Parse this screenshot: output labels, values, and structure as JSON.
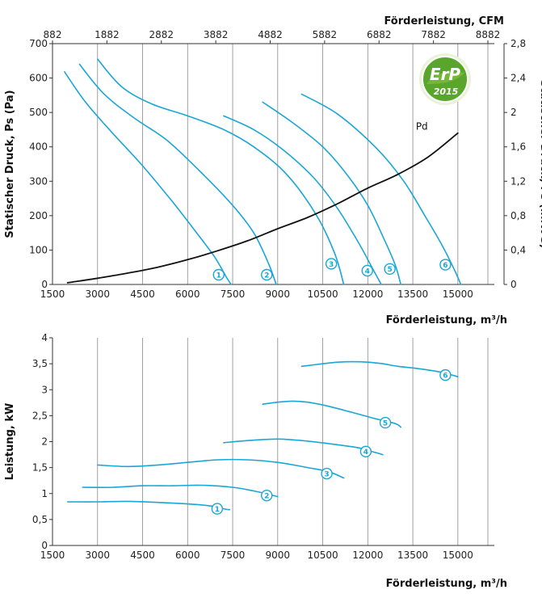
{
  "chart_data": [
    {
      "type": "line",
      "title": "",
      "xlabel": "Förderleistung, m³/h",
      "x2label": "Förderleistung, CFM",
      "ylabel": "Statischer Druck, Ps (Pa)",
      "y2label": "Statischer Druck, Ps (in.WG)",
      "xlim": [
        1500,
        16000
      ],
      "ylim": [
        0,
        700
      ],
      "xticks": [
        "1500",
        "3000",
        "4500",
        "6000",
        "7500",
        "9000",
        "10500",
        "12000",
        "13500",
        "15000"
      ],
      "x2ticks": [
        "882",
        "1882",
        "2882",
        "3882",
        "4882",
        "5882",
        "6882",
        "7882",
        "8882"
      ],
      "yticks": [
        "0",
        "100",
        "200",
        "300",
        "400",
        "500",
        "600",
        "700"
      ],
      "y2ticks": [
        "0",
        "0,4",
        "0,8",
        "1,2",
        "1,6",
        "2",
        "2,4",
        "2,8"
      ],
      "grid": true,
      "badge": {
        "main": "ErP",
        "year": "2015"
      },
      "colors": {
        "curve": "#1aa6d6",
        "pd": "#111111"
      },
      "series": [
        {
          "name": "1",
          "x": [
            1900,
            2600,
            3500,
            4500,
            5500,
            6300,
            6900,
            7300,
            7450
          ],
          "y": [
            618,
            530,
            440,
            345,
            240,
            150,
            80,
            20,
            0
          ]
        },
        {
          "name": "2",
          "x": [
            2400,
            3200,
            4200,
            5300,
            6400,
            7500,
            8200,
            8700,
            8950
          ],
          "y": [
            640,
            555,
            485,
            420,
            330,
            230,
            150,
            60,
            0
          ]
        },
        {
          "name": "3",
          "x": [
            3000,
            3800,
            4800,
            6000,
            7200,
            8200,
            9300,
            10300,
            10900,
            11200
          ],
          "y": [
            655,
            575,
            525,
            490,
            450,
            400,
            320,
            200,
            90,
            0
          ]
        },
        {
          "name": "4",
          "x": [
            7200,
            8200,
            9200,
            10200,
            11000,
            11700,
            12200,
            12450
          ],
          "y": [
            490,
            450,
            390,
            310,
            220,
            120,
            40,
            0
          ]
        },
        {
          "name": "5",
          "x": [
            8500,
            9500,
            10500,
            11300,
            12000,
            12500,
            12900,
            13100
          ],
          "y": [
            530,
            470,
            400,
            320,
            230,
            140,
            60,
            0
          ]
        },
        {
          "name": "6",
          "x": [
            9800,
            11000,
            12300,
            13200,
            13900,
            14500,
            14900,
            15100
          ],
          "y": [
            553,
            495,
            395,
            300,
            200,
            110,
            40,
            0
          ]
        },
        {
          "name": "Pd",
          "x": [
            2000,
            3000,
            4000,
            5000,
            6000,
            7000,
            8000,
            9000,
            10000,
            11000,
            12000,
            13000,
            14000,
            15000
          ],
          "y": [
            5,
            18,
            33,
            50,
            72,
            98,
            127,
            162,
            195,
            235,
            280,
            320,
            370,
            440
          ]
        }
      ],
      "label_positions": {
        "1": 7250,
        "2": 8850,
        "3": 11000,
        "4": 12200,
        "5": 12950,
        "6": 14800
      }
    },
    {
      "type": "line",
      "title": "",
      "xlabel": "Förderleistung, m³/h",
      "ylabel": "Leistung, kW",
      "xlim": [
        1500,
        16000
      ],
      "ylim": [
        0,
        4
      ],
      "xticks": [
        "1500",
        "3000",
        "4500",
        "6000",
        "7500",
        "9000",
        "10500",
        "12000",
        "13500",
        "15000"
      ],
      "yticks": [
        "0",
        "0,5",
        "1",
        "1,5",
        "2",
        "2,5",
        "3",
        "3,5",
        "4"
      ],
      "grid": true,
      "series": [
        {
          "name": "1",
          "x": [
            2000,
            3000,
            4000,
            5000,
            6000,
            6800,
            7250,
            7400
          ],
          "y": [
            0.84,
            0.84,
            0.85,
            0.83,
            0.8,
            0.76,
            0.7,
            0.69
          ]
        },
        {
          "name": "2",
          "x": [
            2500,
            3500,
            4500,
            5500,
            6500,
            7500,
            8200,
            8800,
            9000
          ],
          "y": [
            1.12,
            1.12,
            1.15,
            1.15,
            1.16,
            1.12,
            1.05,
            0.97,
            0.94
          ]
        },
        {
          "name": "3",
          "x": [
            3000,
            4000,
            5000,
            6000,
            7000,
            8000,
            9000,
            10000,
            10700,
            11200
          ],
          "y": [
            1.55,
            1.52,
            1.55,
            1.6,
            1.65,
            1.65,
            1.6,
            1.5,
            1.42,
            1.3
          ]
        },
        {
          "name": "4",
          "x": [
            7200,
            8000,
            9000,
            10000,
            11000,
            11700,
            12200,
            12500
          ],
          "y": [
            1.98,
            2.02,
            2.05,
            2.01,
            1.94,
            1.88,
            1.8,
            1.75
          ]
        },
        {
          "name": "5",
          "x": [
            8500,
            9000,
            9500,
            10000,
            10700,
            11500,
            12200,
            12900,
            13100
          ],
          "y": [
            2.72,
            2.76,
            2.78,
            2.76,
            2.68,
            2.56,
            2.45,
            2.35,
            2.28
          ]
        },
        {
          "name": "6",
          "x": [
            9800,
            10500,
            11000,
            11500,
            12000,
            12500,
            13000,
            13500,
            14000,
            14500,
            15000
          ],
          "y": [
            3.45,
            3.5,
            3.53,
            3.54,
            3.53,
            3.5,
            3.45,
            3.42,
            3.38,
            3.33,
            3.25
          ]
        }
      ],
      "label_positions": {
        "1": 7200,
        "2": 8850,
        "3": 10850,
        "4": 12150,
        "5": 12800,
        "6": 14800
      }
    }
  ]
}
